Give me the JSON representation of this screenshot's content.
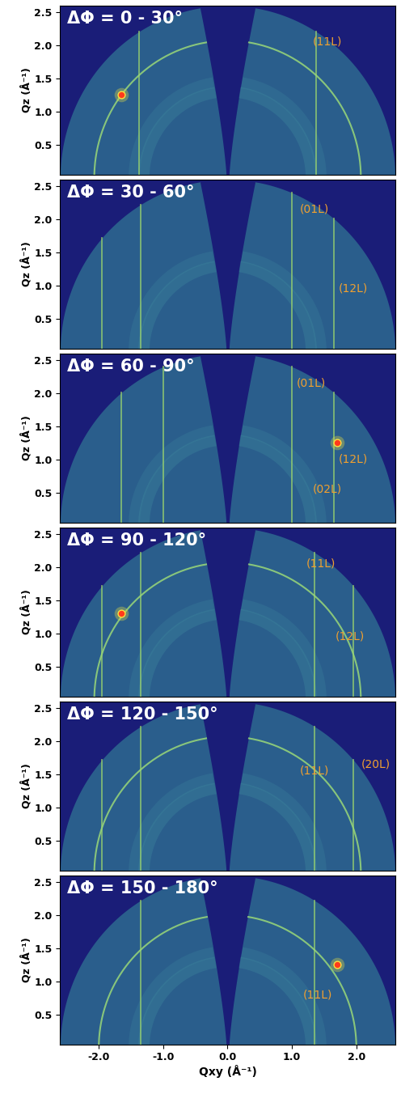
{
  "chart_data": [
    {
      "type": "scatter",
      "title": "ΔΦ = 0 - 30°",
      "ylabel": "Qz (Å⁻¹)",
      "xlim": [
        -2.6,
        2.6
      ],
      "ylim": [
        0.05,
        2.6
      ],
      "yticks": [
        {
          "value": 0.5,
          "label": "0.5"
        },
        {
          "value": 1,
          "label": "1.0"
        },
        {
          "value": 1.5,
          "label": "1.5"
        },
        {
          "value": 2,
          "label": "2.0"
        },
        {
          "value": 2.5,
          "label": "2.5"
        }
      ],
      "tick_labels": "y",
      "color": "#ff3a1c",
      "spots": {
        "x": [
          -1.65
        ],
        "y": [
          1.25
        ]
      },
      "rods": {
        "x": [
          -1.37,
          1.37
        ]
      },
      "rings": {
        "radius": [
          2.07
        ]
      },
      "annotations": [
        {
          "text": "(11L)",
          "x": 1.55,
          "y": 2.05
        }
      ]
    },
    {
      "type": "scatter",
      "title": "ΔΦ = 30 - 60°",
      "ylabel": "Qz (Å⁻¹)",
      "xlim": [
        -2.6,
        2.6
      ],
      "ylim": [
        0.05,
        2.6
      ],
      "yticks": [
        {
          "value": 0.5,
          "label": "0.5"
        },
        {
          "value": 1,
          "label": "1.0"
        },
        {
          "value": 1.5,
          "label": "1.5"
        },
        {
          "value": 2,
          "label": "2.0"
        },
        {
          "value": 2.5,
          "label": "2.5"
        }
      ],
      "tick_labels": "y",
      "color": "#ff3a1c",
      "spots": {
        "x": [],
        "y": []
      },
      "rods": {
        "x": [
          -1.95,
          -1.35,
          1.0,
          1.65
        ]
      },
      "rings": {
        "radius": []
      },
      "annotations": [
        {
          "text": "(01L)",
          "x": 1.35,
          "y": 2.15
        },
        {
          "text": "(12L)",
          "x": 1.95,
          "y": 0.95
        }
      ]
    },
    {
      "type": "scatter",
      "title": "ΔΦ = 60 - 90°",
      "ylabel": "Qz (Å⁻¹)",
      "xlim": [
        -2.6,
        2.6
      ],
      "ylim": [
        0.05,
        2.6
      ],
      "yticks": [
        {
          "value": 0.5,
          "label": "0.5"
        },
        {
          "value": 1,
          "label": "1.0"
        },
        {
          "value": 1.5,
          "label": "1.5"
        },
        {
          "value": 2,
          "label": "2.0"
        },
        {
          "value": 2.5,
          "label": "2.5"
        }
      ],
      "tick_labels": "y",
      "color": "#ff3a1c",
      "spots": {
        "x": [
          1.7
        ],
        "y": [
          1.25
        ]
      },
      "rods": {
        "x": [
          -1.65,
          -1.0,
          1.0,
          1.65
        ]
      },
      "rings": {
        "radius": []
      },
      "annotations": [
        {
          "text": "(01L)",
          "x": 1.3,
          "y": 2.15
        },
        {
          "text": "(12L)",
          "x": 1.95,
          "y": 1.0
        },
        {
          "text": "(02L)",
          "x": 1.55,
          "y": 0.55
        }
      ]
    },
    {
      "type": "scatter",
      "title": "ΔΦ = 90 - 120°",
      "ylabel": "Qz (Å⁻¹)",
      "xlim": [
        -2.6,
        2.6
      ],
      "ylim": [
        0.05,
        2.6
      ],
      "yticks": [
        {
          "value": 0.5,
          "label": "0.5"
        },
        {
          "value": 1,
          "label": "1.0"
        },
        {
          "value": 1.5,
          "label": "1.5"
        },
        {
          "value": 2,
          "label": "2.0"
        },
        {
          "value": 2.5,
          "label": "2.5"
        }
      ],
      "tick_labels": "y",
      "color": "#ff3a1c",
      "spots": {
        "x": [
          -1.65
        ],
        "y": [
          1.3
        ]
      },
      "rods": {
        "x": [
          -1.95,
          -1.35,
          1.35,
          1.95
        ]
      },
      "rings": {
        "radius": [
          2.07
        ]
      },
      "annotations": [
        {
          "text": "(11L)",
          "x": 1.45,
          "y": 2.05
        },
        {
          "text": "(12L)",
          "x": 1.9,
          "y": 0.95
        }
      ]
    },
    {
      "type": "scatter",
      "title": "ΔΦ = 120 - 150°",
      "ylabel": "Qz (Å⁻¹)",
      "xlim": [
        -2.6,
        2.6
      ],
      "ylim": [
        0.05,
        2.6
      ],
      "yticks": [
        {
          "value": 0.5,
          "label": "0.5"
        },
        {
          "value": 1,
          "label": "1.0"
        },
        {
          "value": 1.5,
          "label": "1.5"
        },
        {
          "value": 2,
          "label": "2.0"
        },
        {
          "value": 2.5,
          "label": "2.5"
        }
      ],
      "tick_labels": "y",
      "color": "#ff3a1c",
      "spots": {
        "x": [],
        "y": []
      },
      "rods": {
        "x": [
          -1.95,
          -1.35,
          1.35,
          1.95
        ]
      },
      "rings": {
        "radius": [
          2.07
        ]
      },
      "annotations": [
        {
          "text": "(11L)",
          "x": 1.35,
          "y": 1.55
        },
        {
          "text": "(20L)",
          "x": 2.3,
          "y": 1.65
        }
      ]
    },
    {
      "type": "scatter",
      "title": "ΔΦ = 150 - 180°",
      "ylabel": "Qz (Å⁻¹)",
      "xlabel": "Qxy (Å⁻¹)",
      "xlim": [
        -2.6,
        2.6
      ],
      "ylim": [
        0.05,
        2.6
      ],
      "xticks": [
        {
          "value": -2,
          "label": "-2.0"
        },
        {
          "value": -1,
          "label": "-1.0"
        },
        {
          "value": 0,
          "label": "0.0"
        },
        {
          "value": 1,
          "label": "1.0"
        },
        {
          "value": 2,
          "label": "2.0"
        }
      ],
      "yticks": [
        {
          "value": 0.5,
          "label": "0.5"
        },
        {
          "value": 1,
          "label": "1.0"
        },
        {
          "value": 1.5,
          "label": "1.5"
        },
        {
          "value": 2,
          "label": "2.0"
        },
        {
          "value": 2.5,
          "label": "2.5"
        }
      ],
      "tick_labels": true,
      "color": "#ff3a1c",
      "spots": {
        "x": [
          1.7
        ],
        "y": [
          1.25
        ]
      },
      "rods": {
        "x": [
          -1.35,
          1.35
        ]
      },
      "rings": {
        "radius": [
          2.0
        ]
      },
      "annotations": [
        {
          "text": "(11L)",
          "x": 1.4,
          "y": 0.8
        }
      ]
    }
  ]
}
